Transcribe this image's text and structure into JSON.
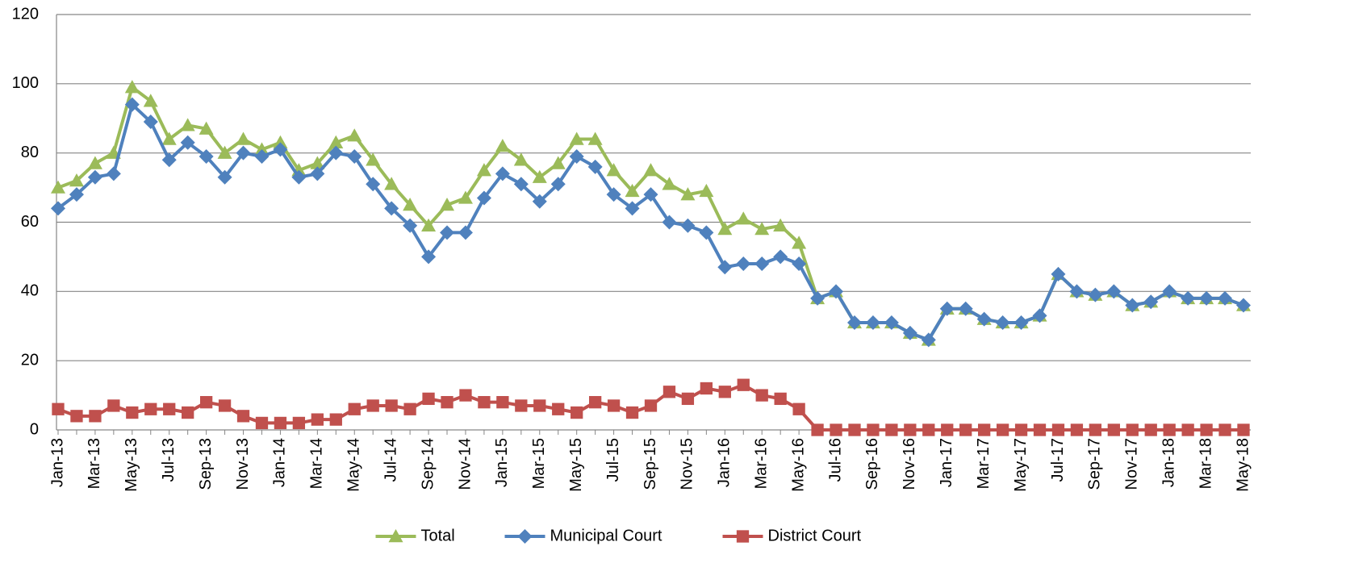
{
  "chart_data": {
    "type": "line",
    "categories": [
      "Jan-13",
      null,
      "Mar-13",
      null,
      "May-13",
      null,
      "Jul-13",
      null,
      "Sep-13",
      null,
      "Nov-13",
      null,
      "Jan-14",
      null,
      "Mar-14",
      null,
      "May-14",
      null,
      "Jul-14",
      null,
      "Sep-14",
      null,
      "Nov-14",
      null,
      "Jan-15",
      null,
      "Mar-15",
      null,
      "May-15",
      null,
      "Jul-15",
      null,
      "Sep-15",
      null,
      "Nov-15",
      null,
      "Jan-16",
      null,
      "Mar-16",
      null,
      "May-16",
      null,
      "Jul-16",
      null,
      "Sep-16",
      null,
      "Nov-16",
      null,
      "Jan-17",
      null,
      "Mar-17",
      null,
      "May-17",
      null,
      "Jul-17",
      null,
      "Sep-17",
      null,
      "Nov-17",
      null,
      "Jan-18",
      null,
      "Mar-18",
      null,
      "May-18"
    ],
    "series": [
      {
        "name": "Total",
        "color": "#9bbb59",
        "marker": "triangle",
        "values": [
          70,
          72,
          77,
          80,
          99,
          95,
          84,
          88,
          87,
          80,
          84,
          81,
          83,
          75,
          77,
          83,
          85,
          78,
          71,
          65,
          59,
          65,
          67,
          75,
          82,
          78,
          73,
          77,
          84,
          84,
          75,
          69,
          75,
          71,
          68,
          69,
          58,
          61,
          58,
          59,
          54,
          38,
          40,
          31,
          31,
          31,
          28,
          26,
          35,
          35,
          32,
          31,
          31,
          33,
          45,
          40,
          39,
          40,
          36,
          37,
          40,
          38,
          38,
          38,
          36
        ]
      },
      {
        "name": "Municipal Court",
        "color": "#4f81bd",
        "marker": "diamond",
        "values": [
          64,
          68,
          73,
          74,
          94,
          89,
          78,
          83,
          79,
          73,
          80,
          79,
          81,
          73,
          74,
          80,
          79,
          71,
          64,
          59,
          50,
          57,
          57,
          67,
          74,
          71,
          66,
          71,
          79,
          76,
          68,
          64,
          68,
          60,
          59,
          57,
          47,
          48,
          48,
          50,
          48,
          38,
          40,
          31,
          31,
          31,
          28,
          26,
          35,
          35,
          32,
          31,
          31,
          33,
          45,
          40,
          39,
          40,
          36,
          37,
          40,
          38,
          38,
          38,
          36
        ]
      },
      {
        "name": "District Court",
        "color": "#c0504d",
        "marker": "square",
        "values": [
          6,
          4,
          4,
          7,
          5,
          6,
          6,
          5,
          8,
          7,
          4,
          2,
          2,
          2,
          3,
          3,
          6,
          7,
          7,
          6,
          9,
          8,
          10,
          8,
          8,
          7,
          7,
          6,
          5,
          8,
          7,
          5,
          7,
          11,
          9,
          12,
          11,
          13,
          10,
          9,
          6,
          0,
          0,
          0,
          0,
          0,
          0,
          0,
          0,
          0,
          0,
          0,
          0,
          0,
          0,
          0,
          0,
          0,
          0,
          0,
          0,
          0,
          0,
          0,
          0
        ]
      }
    ],
    "ylim": [
      0,
      120
    ],
    "yticks": [
      0,
      20,
      40,
      60,
      80,
      100,
      120
    ],
    "grid": true,
    "legend": "bottom"
  }
}
